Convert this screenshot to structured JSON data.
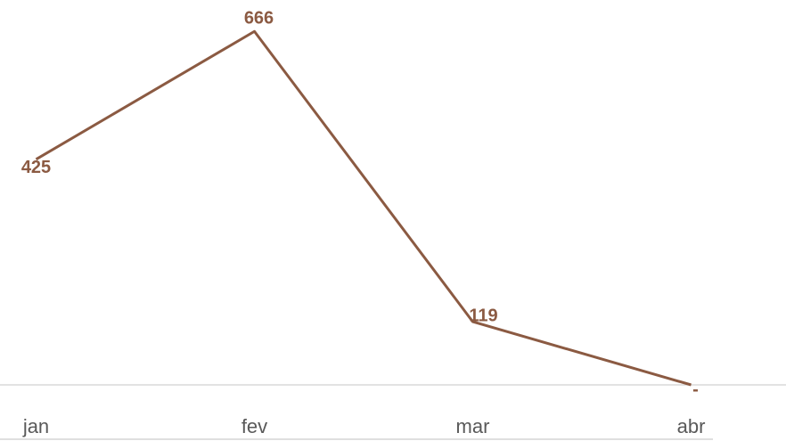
{
  "chart_data": {
    "type": "line",
    "categories": [
      "jan",
      "fev",
      "mar",
      "abr"
    ],
    "values": [
      425,
      666,
      119,
      0
    ],
    "value_labels": [
      "425",
      "666",
      "119",
      "-"
    ],
    "color": "#8b5a42",
    "ylim": [
      0,
      700
    ]
  }
}
